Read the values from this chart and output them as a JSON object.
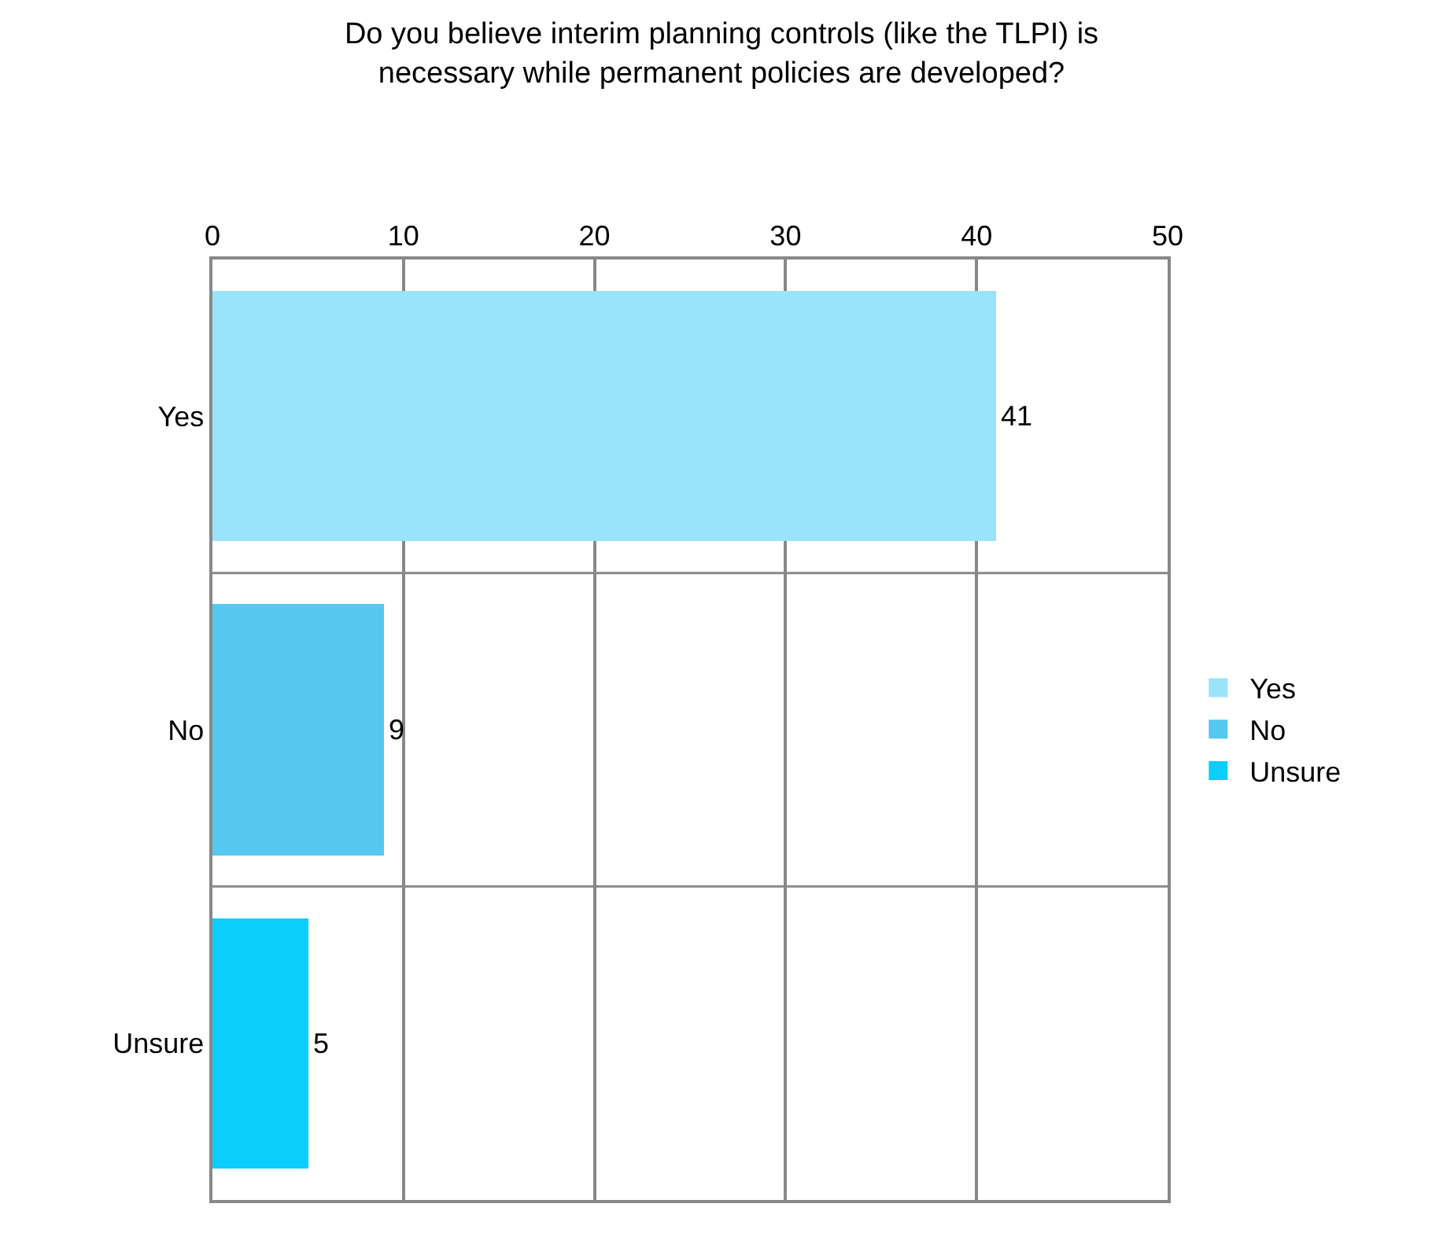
{
  "chart_data": {
    "type": "bar",
    "orientation": "horizontal",
    "title": "Do you believe interim planning controls (like the TLPI) is necessary while permanent policies are developed?",
    "categories": [
      "Yes",
      "No",
      "Unsure"
    ],
    "series": [
      {
        "name": "Yes",
        "color": "#99e3fb",
        "values": [
          41,
          null,
          null
        ]
      },
      {
        "name": "No",
        "color": "#56c7ee",
        "values": [
          null,
          9,
          null
        ]
      },
      {
        "name": "Unsure",
        "color": "#0ccdfc",
        "values": [
          null,
          null,
          5
        ]
      }
    ],
    "xlim": [
      0,
      50
    ],
    "xticks": [
      0,
      10,
      20,
      30,
      40,
      50
    ],
    "grid": true,
    "legend": "right",
    "data_labels": true
  }
}
